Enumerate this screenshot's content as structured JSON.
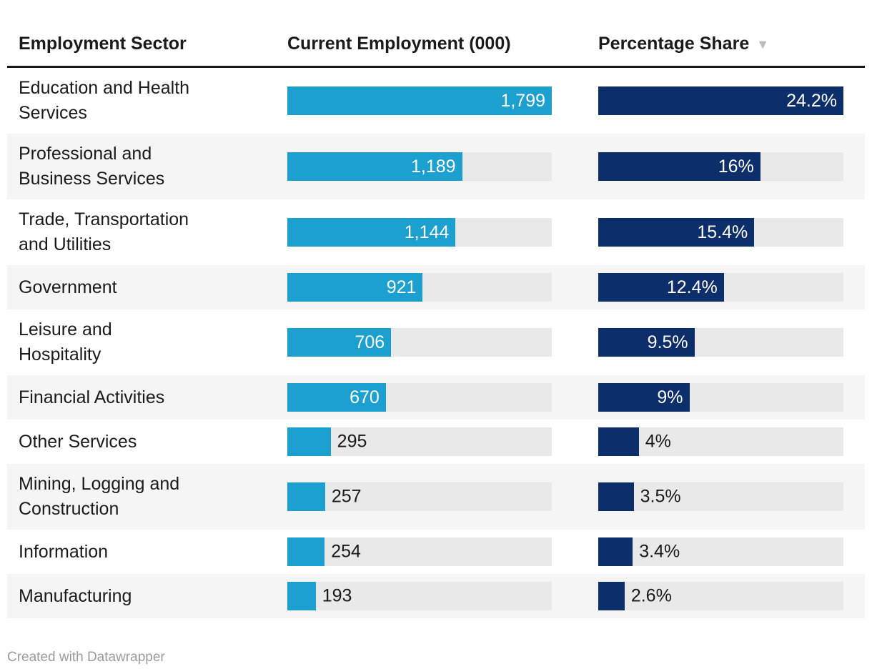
{
  "table": {
    "columns": [
      {
        "label": "Employment Sector"
      },
      {
        "label": "Current Employment (000)"
      },
      {
        "label": "Percentage Share",
        "sort_icon": "▼",
        "sort_direction": "descending"
      }
    ],
    "max_employment": 1799,
    "max_share": 24.2,
    "rows": [
      {
        "sector": "Education and Health Services",
        "sector_display": "Education and Health\nServices",
        "employment_label": "1,799",
        "employment": 1799,
        "share_label": "24.2%",
        "share": 24.2
      },
      {
        "sector": "Professional and Business Services",
        "sector_display": "Professional and\nBusiness Services",
        "employment_label": "1,189",
        "employment": 1189,
        "share_label": "16%",
        "share": 16
      },
      {
        "sector": "Trade, Transportation and Utilities",
        "sector_display": "Trade, Transportation\nand Utilities",
        "employment_label": "1,144",
        "employment": 1144,
        "share_label": "15.4%",
        "share": 15.4
      },
      {
        "sector": "Government",
        "sector_display": "Government",
        "employment_label": "921",
        "employment": 921,
        "share_label": "12.4%",
        "share": 12.4
      },
      {
        "sector": "Leisure and Hospitality",
        "sector_display": "Leisure and\nHospitality",
        "employment_label": "706",
        "employment": 706,
        "share_label": "9.5%",
        "share": 9.5
      },
      {
        "sector": "Financial Activities",
        "sector_display": "Financial Activities",
        "employment_label": "670",
        "employment": 670,
        "share_label": "9%",
        "share": 9
      },
      {
        "sector": "Other Services",
        "sector_display": "Other Services",
        "employment_label": "295",
        "employment": 295,
        "share_label": "4%",
        "share": 4
      },
      {
        "sector": "Mining, Logging and Construction",
        "sector_display": "Mining, Logging and\nConstruction",
        "employment_label": "257",
        "employment": 257,
        "share_label": "3.5%",
        "share": 3.5
      },
      {
        "sector": "Information",
        "sector_display": "Information",
        "employment_label": "254",
        "employment": 254,
        "share_label": "3.4%",
        "share": 3.4
      },
      {
        "sector": "Manufacturing",
        "sector_display": "Manufacturing",
        "employment_label": "193",
        "employment": 193,
        "share_label": "2.6%",
        "share": 2.6
      }
    ]
  },
  "footer": {
    "credit": "Created with Datawrapper"
  },
  "colors": {
    "employment_bar": "#1CA0CF",
    "share_bar": "#0C2E6A",
    "bar_track": "#E9E9E9",
    "row_alt_background": "#F5F5F5",
    "header_rule": "#1A1A1A",
    "text": "#1A1A1A",
    "bar_label_inside": "#FFFFFF",
    "credit_text": "#9B9B9B",
    "sort_arrow": "#BBBBBB"
  },
  "chart_data": {
    "type": "table",
    "title": "",
    "categories": [
      "Education and Health Services",
      "Professional and Business Services",
      "Trade, Transportation and Utilities",
      "Government",
      "Leisure and Hospitality",
      "Financial Activities",
      "Other Services",
      "Mining, Logging and Construction",
      "Information",
      "Manufacturing"
    ],
    "series": [
      {
        "name": "Current Employment (000)",
        "type": "bar",
        "values": [
          1799,
          1189,
          1144,
          921,
          706,
          670,
          295,
          257,
          254,
          193
        ],
        "xlim": [
          0,
          1799
        ]
      },
      {
        "name": "Percentage Share",
        "type": "bar",
        "values": [
          24.2,
          16,
          15.4,
          12.4,
          9.5,
          9,
          4,
          3.5,
          3.4,
          2.6
        ],
        "xlim": [
          0,
          24.2
        ]
      }
    ],
    "sort": "Percentage Share descending",
    "grid": false,
    "legend_position": "none"
  }
}
